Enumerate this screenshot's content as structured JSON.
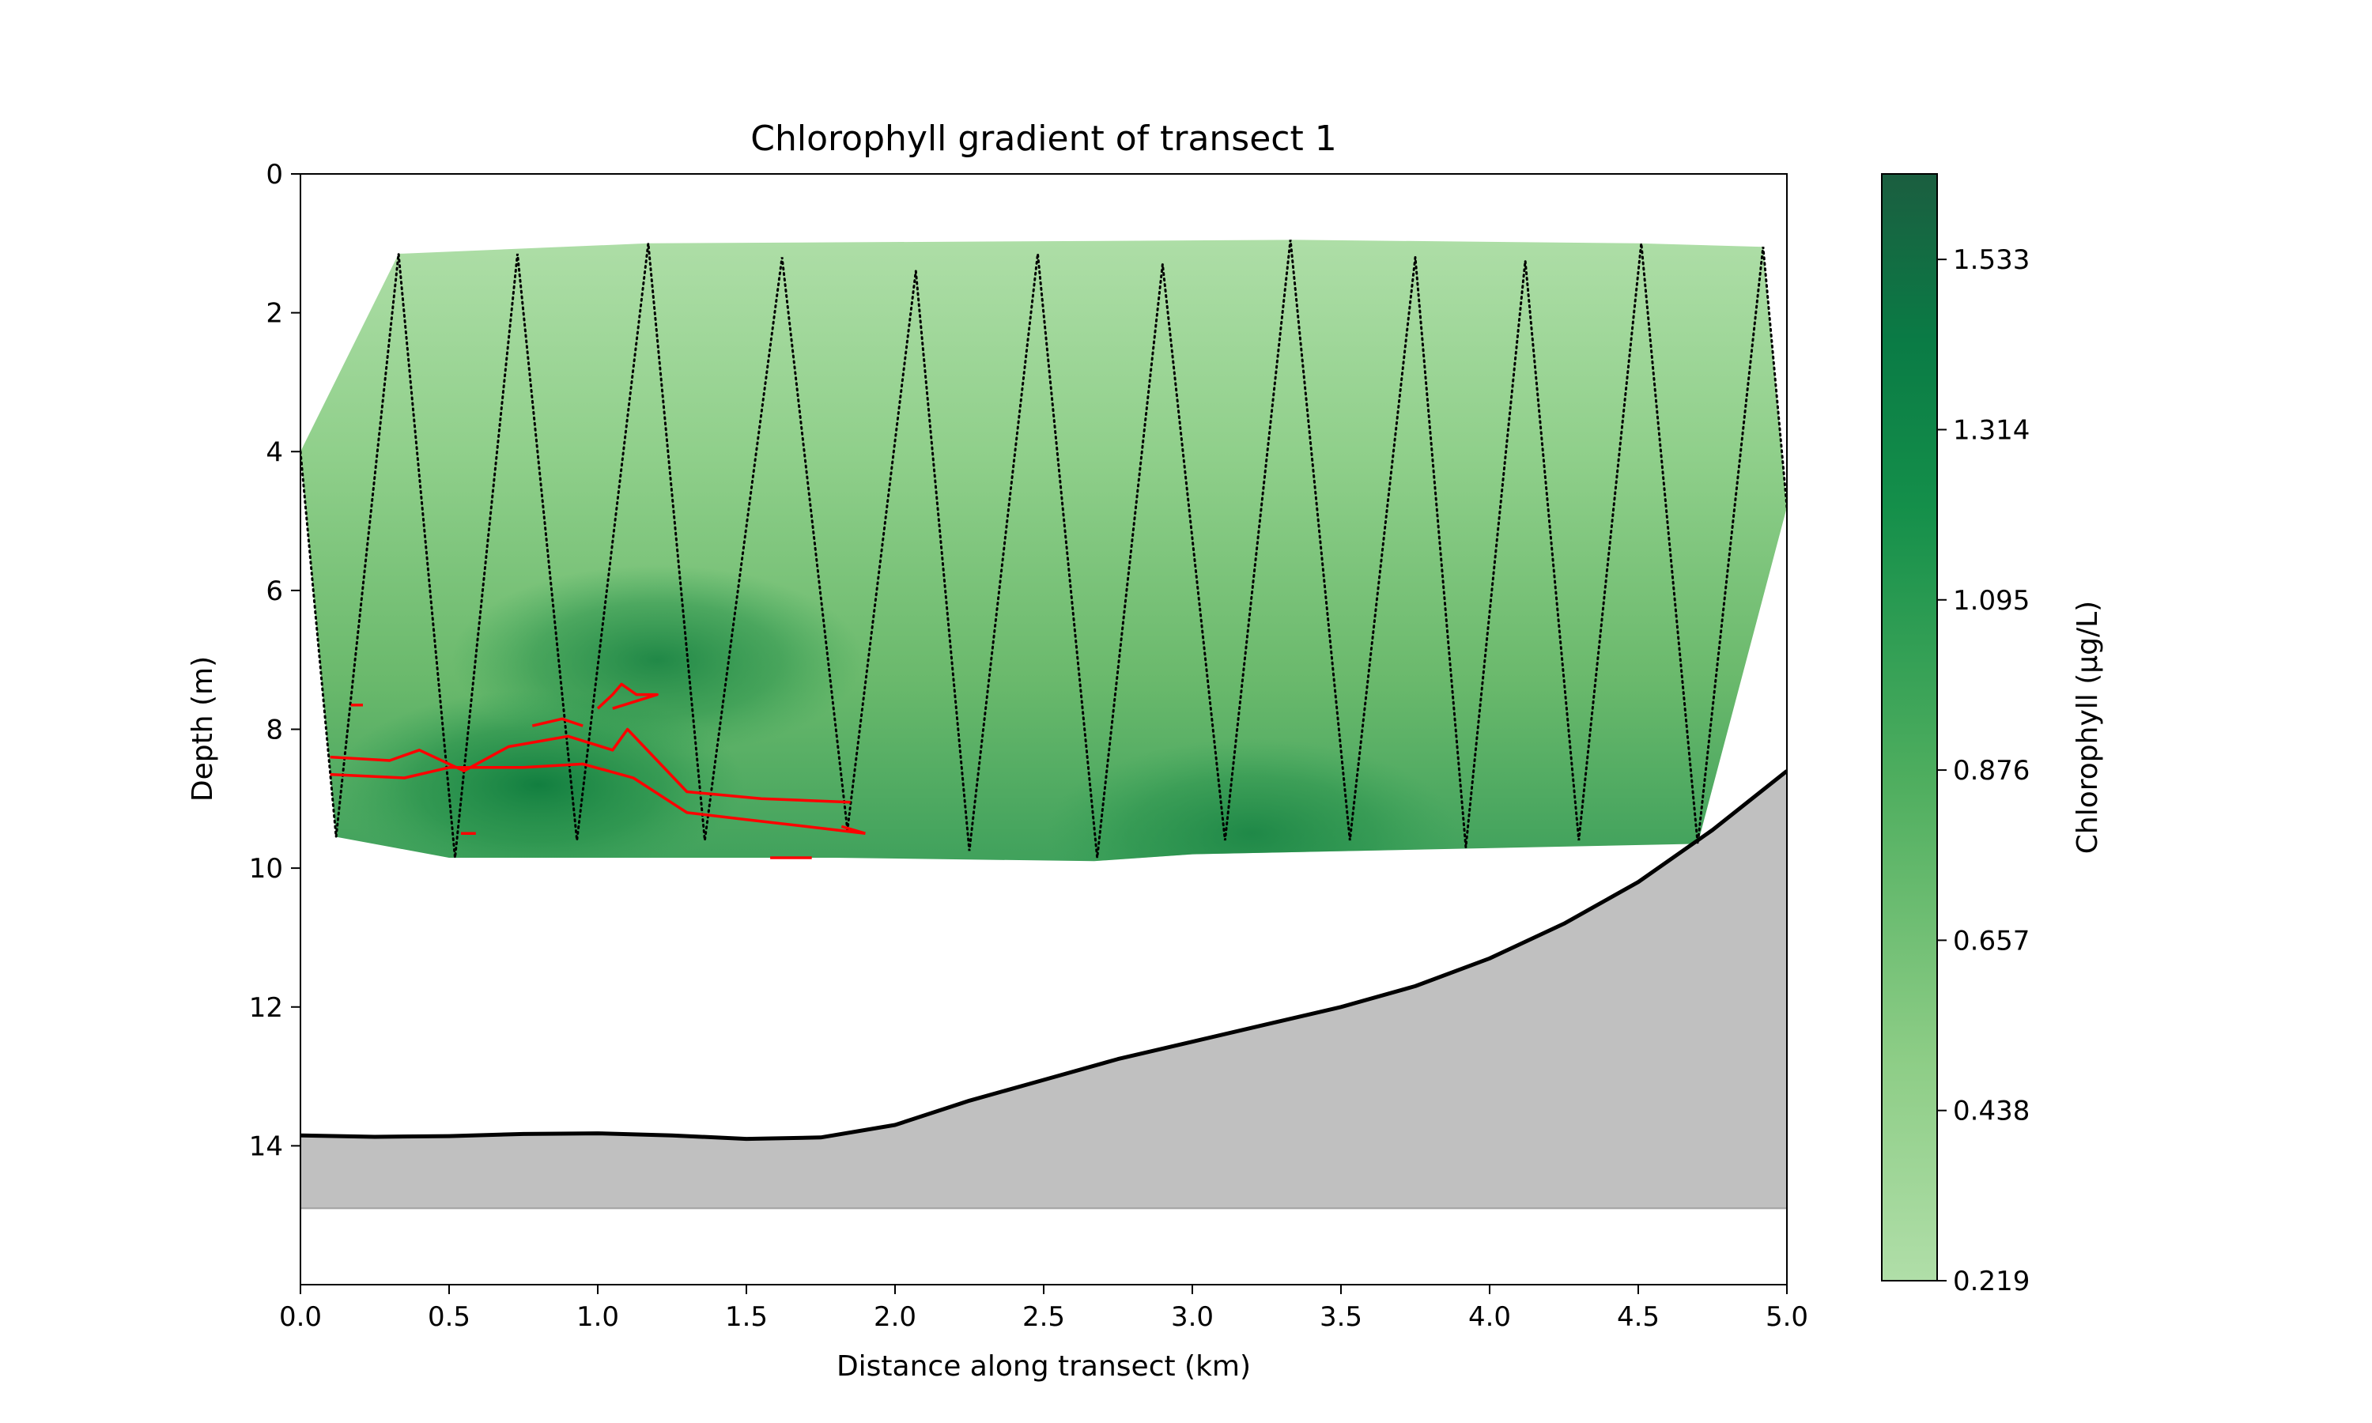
{
  "chart_data": {
    "type": "heatmap",
    "title": "Chlorophyll gradient of transect 1",
    "xlabel": "Distance along transect (km)",
    "ylabel": "Depth (m)",
    "xlim": [
      0.0,
      5.0
    ],
    "ylim": [
      16.0,
      0.0
    ],
    "x_ticks": [
      "0.0",
      "0.5",
      "1.0",
      "1.5",
      "2.0",
      "2.5",
      "3.0",
      "3.5",
      "4.0",
      "4.5",
      "5.0"
    ],
    "y_ticks": [
      "0",
      "2",
      "4",
      "6",
      "8",
      "10",
      "12",
      "14"
    ],
    "grid": false,
    "colorbar": {
      "label": "Chlorophyll (µg/L)",
      "colormap": "Greens",
      "range": [
        0.219,
        1.643
      ],
      "ticks": [
        "0.219",
        "0.438",
        "0.657",
        "0.876",
        "1.095",
        "1.314",
        "1.533"
      ]
    },
    "data_envelope": {
      "top": [
        [
          0.0,
          4.0
        ],
        [
          0.33,
          1.15
        ],
        [
          1.17,
          1.0
        ],
        [
          3.35,
          0.95
        ],
        [
          4.5,
          1.0
        ],
        [
          4.92,
          1.05
        ],
        [
          5.0,
          4.8
        ]
      ],
      "bottom": [
        [
          5.0,
          4.8
        ],
        [
          4.7,
          9.65
        ],
        [
          3.0,
          9.8
        ],
        [
          2.67,
          9.9
        ],
        [
          1.8,
          9.85
        ],
        [
          0.5,
          9.85
        ],
        [
          0.12,
          9.55
        ],
        [
          0.0,
          4.0
        ]
      ]
    },
    "gradient_stops": [
      {
        "depth": 1.0,
        "value": 0.35
      },
      {
        "depth": 4.0,
        "value": 0.55
      },
      {
        "depth": 7.0,
        "value": 0.75
      },
      {
        "depth": 9.8,
        "value": 0.9
      }
    ],
    "hotspots": [
      {
        "x": 0.8,
        "depth": 8.8,
        "value": 1.3
      },
      {
        "x": 1.2,
        "depth": 7.0,
        "value": 1.15
      },
      {
        "x": 3.2,
        "depth": 9.5,
        "value": 1.0
      }
    ],
    "cast_path": {
      "style": "dotted",
      "color": "#000000",
      "points": [
        [
          0.0,
          4.0
        ],
        [
          0.12,
          9.55
        ],
        [
          0.33,
          1.15
        ],
        [
          0.52,
          9.85
        ],
        [
          0.73,
          1.15
        ],
        [
          0.93,
          9.6
        ],
        [
          1.17,
          1.0
        ],
        [
          1.36,
          9.6
        ],
        [
          1.62,
          1.2
        ],
        [
          1.84,
          9.45
        ],
        [
          2.07,
          1.4
        ],
        [
          2.25,
          9.75
        ],
        [
          2.48,
          1.15
        ],
        [
          2.68,
          9.85
        ],
        [
          2.9,
          1.3
        ],
        [
          3.11,
          9.6
        ],
        [
          3.33,
          0.95
        ],
        [
          3.53,
          9.6
        ],
        [
          3.75,
          1.2
        ],
        [
          3.92,
          9.7
        ],
        [
          4.12,
          1.25
        ],
        [
          4.3,
          9.6
        ],
        [
          4.51,
          1.0
        ],
        [
          4.7,
          9.65
        ],
        [
          4.92,
          1.05
        ],
        [
          5.0,
          4.8
        ]
      ]
    },
    "threshold_contour": {
      "color": "#ff0000",
      "segments": [
        [
          [
            0.1,
            8.4
          ],
          [
            0.3,
            8.45
          ],
          [
            0.4,
            8.3
          ],
          [
            0.55,
            8.6
          ],
          [
            0.7,
            8.25
          ],
          [
            0.9,
            8.1
          ],
          [
            1.05,
            8.3
          ],
          [
            1.1,
            8.0
          ],
          [
            1.3,
            8.9
          ],
          [
            1.55,
            9.0
          ],
          [
            1.85,
            9.05
          ]
        ],
        [
          [
            0.1,
            8.65
          ],
          [
            0.35,
            8.7
          ],
          [
            0.5,
            8.55
          ],
          [
            0.75,
            8.55
          ],
          [
            0.95,
            8.5
          ],
          [
            1.12,
            8.7
          ],
          [
            1.3,
            9.2
          ],
          [
            1.5,
            9.3
          ],
          [
            1.7,
            9.4
          ],
          [
            1.9,
            9.5
          ]
        ],
        [
          [
            1.0,
            7.7
          ],
          [
            1.05,
            7.5
          ],
          [
            1.08,
            7.35
          ],
          [
            1.13,
            7.5
          ],
          [
            1.2,
            7.5
          ],
          [
            1.05,
            7.7
          ]
        ],
        [
          [
            0.78,
            7.95
          ],
          [
            0.88,
            7.85
          ],
          [
            0.95,
            7.95
          ]
        ],
        [
          [
            0.17,
            7.65
          ],
          [
            0.21,
            7.65
          ]
        ],
        [
          [
            0.54,
            9.5
          ],
          [
            0.59,
            9.5
          ]
        ],
        [
          [
            1.58,
            9.85
          ],
          [
            1.72,
            9.85
          ]
        ],
        [
          [
            1.82,
            9.4
          ],
          [
            1.9,
            9.5
          ]
        ]
      ]
    },
    "seabed": {
      "fill_color": "#c0c0c0",
      "line_color": "#000000",
      "floor_depth": 14.9,
      "profile": [
        [
          0.0,
          13.85
        ],
        [
          0.25,
          13.87
        ],
        [
          0.5,
          13.86
        ],
        [
          0.75,
          13.83
        ],
        [
          1.0,
          13.82
        ],
        [
          1.25,
          13.85
        ],
        [
          1.5,
          13.9
        ],
        [
          1.75,
          13.88
        ],
        [
          2.0,
          13.7
        ],
        [
          2.25,
          13.35
        ],
        [
          2.5,
          13.05
        ],
        [
          2.75,
          12.75
        ],
        [
          3.0,
          12.5
        ],
        [
          3.25,
          12.25
        ],
        [
          3.5,
          12.0
        ],
        [
          3.75,
          11.7
        ],
        [
          4.0,
          11.3
        ],
        [
          4.25,
          10.8
        ],
        [
          4.5,
          10.2
        ],
        [
          4.75,
          9.45
        ],
        [
          5.0,
          8.6
        ]
      ]
    }
  }
}
